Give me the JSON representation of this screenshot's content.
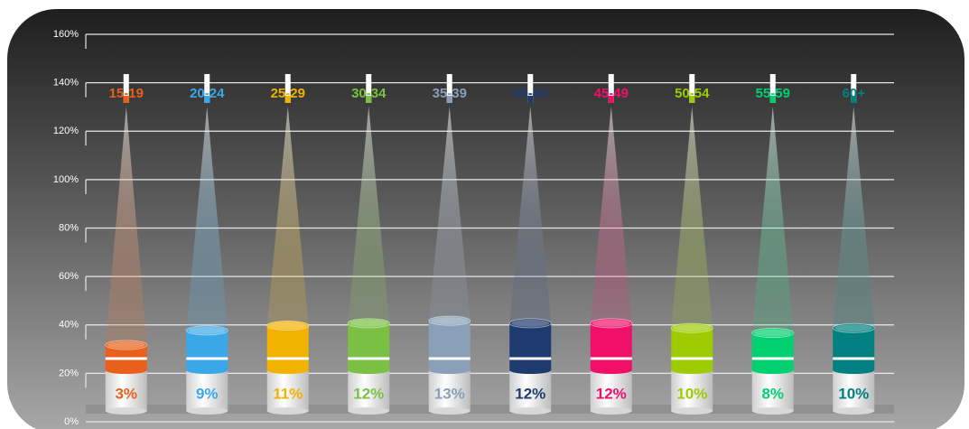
{
  "chart_data": {
    "type": "bar",
    "categories": [
      "15-19",
      "20-24",
      "25-29",
      "30-34",
      "35-39",
      "40-44",
      "45-49",
      "50-54",
      "55-59",
      "60+"
    ],
    "values": [
      3,
      9,
      11,
      12,
      13,
      12,
      12,
      10,
      8,
      10
    ],
    "value_labels": [
      "3%",
      "9%",
      "11%",
      "12%",
      "13%",
      "12%",
      "12%",
      "10%",
      "8%",
      "10%"
    ],
    "colors": [
      "#e8601c",
      "#3aa8e8",
      "#f2b200",
      "#7ac143",
      "#8aa0b8",
      "#1f3a6e",
      "#f0106a",
      "#9ccc00",
      "#00d070",
      "#008080"
    ],
    "ylim": [
      0,
      160
    ],
    "yticks": [
      {
        "value": 0,
        "label": "0%"
      },
      {
        "value": 20,
        "label": "20%"
      },
      {
        "value": 40,
        "label": "40%"
      },
      {
        "value": 60,
        "label": "60%"
      },
      {
        "value": 80,
        "label": "80%"
      },
      {
        "value": 100,
        "label": "100%"
      },
      {
        "value": 120,
        "label": "120%"
      },
      {
        "value": 140,
        "label": "140%"
      },
      {
        "value": 160,
        "label": "160%"
      }
    ],
    "grid": true
  }
}
